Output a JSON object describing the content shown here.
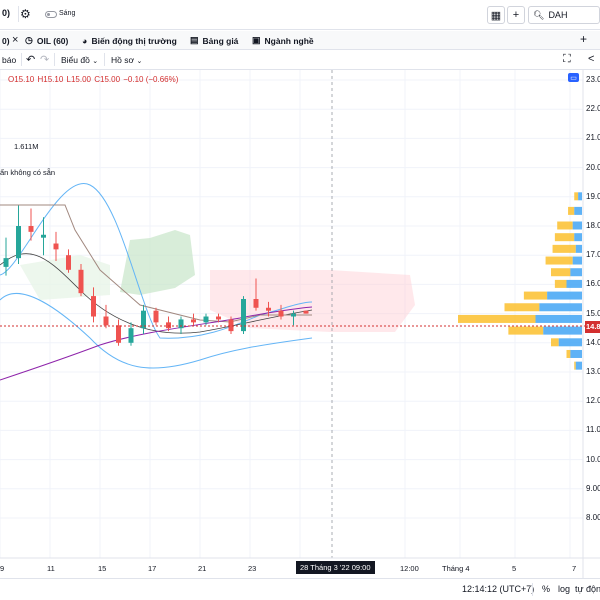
{
  "window": {
    "layout_indicator": "0)",
    "theme_toggle_label": "Sáng",
    "symbol_search_value": "DAH"
  },
  "tabs": [
    {
      "label": "OIL (60)",
      "icon": "oil-chart-icon"
    },
    {
      "label": "Biến động thị trường",
      "icon": "market-movers-icon"
    },
    {
      "label": "Bảng giá",
      "icon": "price-board-icon"
    },
    {
      "label": "Ngành nghề",
      "icon": "industry-icon"
    }
  ],
  "toolbar": {
    "alert_label": "báo",
    "chart_type_label": "Biểu đồ",
    "profile_label": "Hồ sơ"
  },
  "legend": {
    "ohlc": {
      "open": "O15.10",
      "high": "H15.10",
      "low": "L15.00",
      "close": "C15.00",
      "change": "−0.10 (−0.66%)"
    },
    "volume": "1.611M",
    "unavailable_note": "ẩn  không có sẵn"
  },
  "price_axis": {
    "ticks": [
      "23.0",
      "22.0",
      "21.0",
      "20.0",
      "19.0",
      "18.0",
      "17.0",
      "16.0",
      "15.0",
      "14.0",
      "13.0",
      "12.0",
      "11.0",
      "10.0",
      "9.00",
      "8.00"
    ],
    "last_price_tag": "14.8"
  },
  "time_axis": {
    "ticks": [
      "9",
      "11",
      "15",
      "17",
      "21",
      "23",
      "12:00",
      "Tháng 4",
      "5",
      "7"
    ],
    "crosshair_date": "28 Tháng 3 '22  09:00"
  },
  "status": {
    "clock": "12:14:12 (UTC+7)",
    "percent_label": "%",
    "log_label": "log",
    "auto_label": "tự động"
  },
  "colors": {
    "up": "#26a69a",
    "down": "#ef5350",
    "accent": "#2962ff",
    "vp_up": "#42a5f5",
    "vp_down": "#fbc02d"
  },
  "chart_data": {
    "type": "candlestick",
    "y_range": [
      8.0,
      23.0
    ],
    "series": [
      {
        "name": "price",
        "points": [
          {
            "o": 16.6,
            "h": 17.6,
            "l": 16.3,
            "c": 16.9
          },
          {
            "o": 16.9,
            "h": 18.7,
            "l": 16.7,
            "c": 18.0
          },
          {
            "o": 18.0,
            "h": 18.6,
            "l": 17.5,
            "c": 17.8
          },
          {
            "o": 17.6,
            "h": 18.3,
            "l": 17.0,
            "c": 17.7
          },
          {
            "o": 17.4,
            "h": 17.8,
            "l": 16.8,
            "c": 17.2
          },
          {
            "o": 17.0,
            "h": 17.2,
            "l": 16.4,
            "c": 16.5
          },
          {
            "o": 16.5,
            "h": 16.7,
            "l": 15.6,
            "c": 15.7
          },
          {
            "o": 15.6,
            "h": 15.9,
            "l": 14.7,
            "c": 14.9
          },
          {
            "o": 14.9,
            "h": 15.3,
            "l": 14.5,
            "c": 14.6
          },
          {
            "o": 14.6,
            "h": 14.8,
            "l": 13.9,
            "c": 14.0
          },
          {
            "o": 14.0,
            "h": 14.7,
            "l": 13.9,
            "c": 14.5
          },
          {
            "o": 14.5,
            "h": 15.3,
            "l": 14.3,
            "c": 15.1
          },
          {
            "o": 15.1,
            "h": 15.2,
            "l": 14.6,
            "c": 14.7
          },
          {
            "o": 14.7,
            "h": 14.9,
            "l": 14.4,
            "c": 14.5
          },
          {
            "o": 14.5,
            "h": 14.9,
            "l": 14.3,
            "c": 14.8
          },
          {
            "o": 14.8,
            "h": 15.0,
            "l": 14.6,
            "c": 14.7
          },
          {
            "o": 14.7,
            "h": 15.0,
            "l": 14.6,
            "c": 14.9
          },
          {
            "o": 14.9,
            "h": 15.0,
            "l": 14.7,
            "c": 14.8
          },
          {
            "o": 14.8,
            "h": 14.9,
            "l": 14.3,
            "c": 14.4
          },
          {
            "o": 14.4,
            "h": 15.6,
            "l": 14.3,
            "c": 15.5
          },
          {
            "o": 15.5,
            "h": 16.2,
            "l": 15.1,
            "c": 15.2
          },
          {
            "o": 15.2,
            "h": 15.4,
            "l": 14.9,
            "c": 15.1
          },
          {
            "o": 15.1,
            "h": 15.3,
            "l": 14.8,
            "c": 14.9
          },
          {
            "o": 14.9,
            "h": 15.1,
            "l": 14.6,
            "c": 15.0
          },
          {
            "o": 15.1,
            "h": 15.1,
            "l": 15.0,
            "c": 15.0
          }
        ]
      }
    ],
    "volume_profile": [
      {
        "price": 19.0,
        "up": 0.05,
        "down": 0.05
      },
      {
        "price": 18.5,
        "up": 0.1,
        "down": 0.08
      },
      {
        "price": 18.0,
        "up": 0.12,
        "down": 0.2
      },
      {
        "price": 17.6,
        "up": 0.1,
        "down": 0.25
      },
      {
        "price": 17.2,
        "up": 0.08,
        "down": 0.3
      },
      {
        "price": 16.8,
        "up": 0.12,
        "down": 0.35
      },
      {
        "price": 16.4,
        "up": 0.15,
        "down": 0.25
      },
      {
        "price": 16.0,
        "up": 0.2,
        "down": 0.15
      },
      {
        "price": 15.6,
        "up": 0.45,
        "down": 0.3
      },
      {
        "price": 15.2,
        "up": 0.55,
        "down": 0.45
      },
      {
        "price": 14.8,
        "up": 0.6,
        "down": 1.0
      },
      {
        "price": 14.4,
        "up": 0.5,
        "down": 0.45
      },
      {
        "price": 14.0,
        "up": 0.3,
        "down": 0.1
      },
      {
        "price": 13.6,
        "up": 0.15,
        "down": 0.05
      },
      {
        "price": 13.2,
        "up": 0.08,
        "down": 0.02
      }
    ]
  }
}
